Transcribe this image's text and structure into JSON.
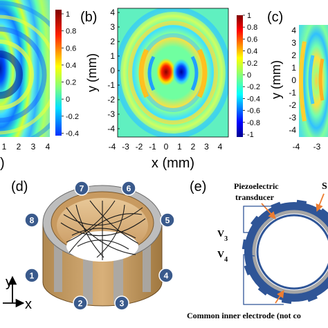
{
  "panels": {
    "a": {
      "colorbar_ticks": [
        "1",
        "0.8",
        "0.6",
        "0.4",
        "0.2",
        "0",
        "-0.2",
        "-0.4"
      ],
      "x_ticks": [
        "1",
        "2",
        "3",
        "4"
      ],
      "x_label_fragment": ")"
    },
    "b": {
      "label": "(b)",
      "y_label": "y (mm)",
      "x_label": "x (mm)",
      "y_ticks": [
        "4",
        "3",
        "2",
        "1",
        "0",
        "-1",
        "-2",
        "-3",
        "-4"
      ],
      "x_ticks": [
        "-4",
        "-3",
        "-2",
        "-1",
        "0",
        "1",
        "2",
        "3",
        "4"
      ],
      "colorbar_ticks": [
        "1",
        "0.8",
        "0.6",
        "0.4",
        "0.2",
        "0",
        "-0.2",
        "-0.4",
        "-0.6",
        "-0.8",
        "-1"
      ]
    },
    "c": {
      "label": "(c)",
      "y_label": "y (mm)",
      "y_ticks": [
        "4",
        "3",
        "2",
        "1",
        "0",
        "-1",
        "-2",
        "-3",
        "-4"
      ],
      "x_ticks": [
        "-4",
        "-3"
      ]
    },
    "d": {
      "label": "(d)",
      "electrodes": [
        "1",
        "2",
        "3",
        "4",
        "5",
        "6",
        "7",
        "8"
      ],
      "axis_y": "y",
      "axis_x": "x"
    },
    "e": {
      "label": "(e)",
      "annotation_transducer_line1": "Piezoelectric",
      "annotation_transducer_line2": "transducer",
      "annotation_partial": "S",
      "v3": "V3",
      "v4": "V4",
      "bottom_note": "Common inner electrode (not co"
    }
  },
  "colors": {
    "colormap_low": "#00008f",
    "colormap_mid": "#7fff7f",
    "colormap_high": "#800000",
    "electrode_marker": "#3a5a8c",
    "transducer_fill": "#c8a26a",
    "ring_blue": "#2f5597",
    "annotation_arrow": "#ed7d31"
  }
}
